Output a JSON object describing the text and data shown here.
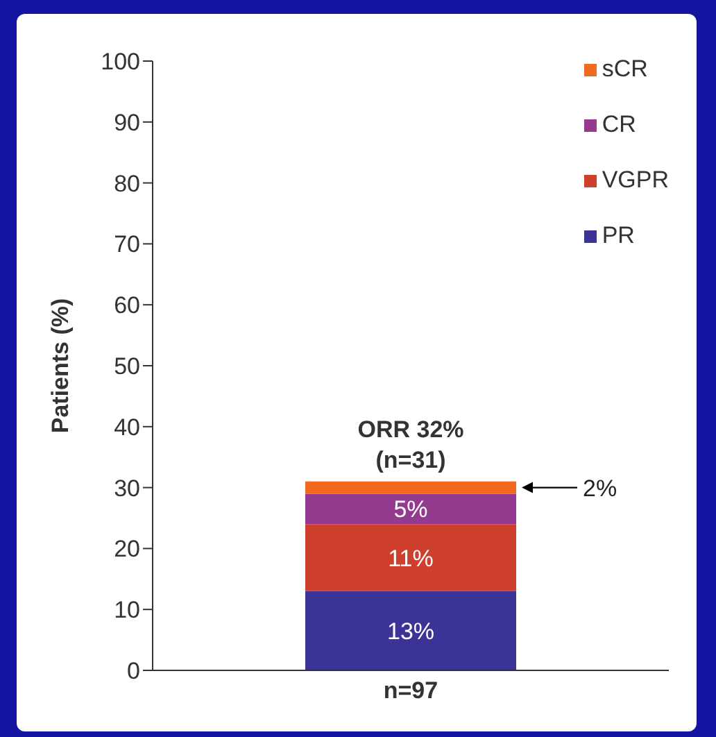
{
  "chart_data": {
    "type": "bar",
    "stacked": true,
    "ylabel": "Patients (%)",
    "categories": [
      "n=97"
    ],
    "series": [
      {
        "name": "PR",
        "color": "#3b3496",
        "values": [
          13
        ],
        "value_labels": [
          "13%"
        ]
      },
      {
        "name": "VGPR",
        "color": "#cf3f2e",
        "values": [
          11
        ],
        "value_labels": [
          "11%"
        ]
      },
      {
        "name": "CR",
        "color": "#953b8f",
        "values": [
          5
        ],
        "value_labels": [
          "5%"
        ]
      },
      {
        "name": "sCR",
        "color": "#f26a22",
        "values": [
          2
        ],
        "value_labels": [
          "2%"
        ]
      }
    ],
    "ylim": [
      0,
      100
    ],
    "yticks": [
      0,
      10,
      20,
      30,
      40,
      50,
      60,
      70,
      80,
      90,
      100
    ],
    "grid": false,
    "legend": "top right",
    "annotations": [
      "ORR 32%\n(n=31)"
    ]
  }
}
